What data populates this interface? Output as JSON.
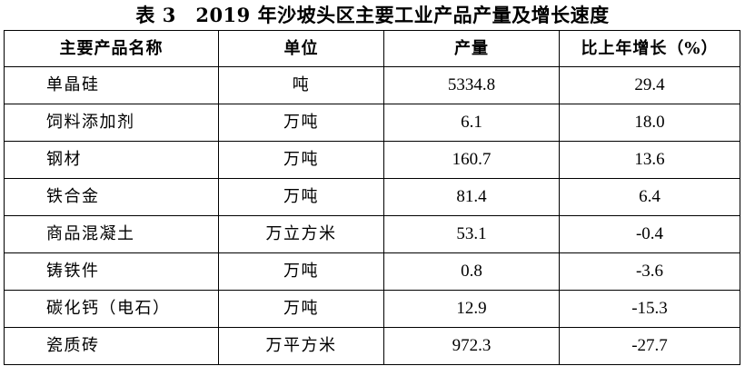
{
  "title": "表 3　2019 年沙坡头区主要工业产品产量及增长速度",
  "table": {
    "headers": [
      "主要产品名称",
      "单位",
      "产量",
      "比上年增长（%）"
    ],
    "rows": [
      {
        "name": "单晶硅",
        "unit": "吨",
        "output": "5334.8",
        "growth": "29.4"
      },
      {
        "name": "饲料添加剂",
        "unit": "万吨",
        "output": "6.1",
        "growth": "18.0"
      },
      {
        "name": "钢材",
        "unit": "万吨",
        "output": "160.7",
        "growth": "13.6"
      },
      {
        "name": "铁合金",
        "unit": "万吨",
        "output": "81.4",
        "growth": "6.4"
      },
      {
        "name": "商品混凝土",
        "unit": "万立方米",
        "output": "53.1",
        "growth": "-0.4"
      },
      {
        "name": "铸铁件",
        "unit": "万吨",
        "output": "0.8",
        "growth": "-3.6"
      },
      {
        "name": "碳化钙（电石）",
        "unit": "万吨",
        "output": "12.9",
        "growth": "-15.3"
      },
      {
        "name": "瓷质砖",
        "unit": "万平方米",
        "output": "972.3",
        "growth": "-27.7"
      }
    ]
  }
}
